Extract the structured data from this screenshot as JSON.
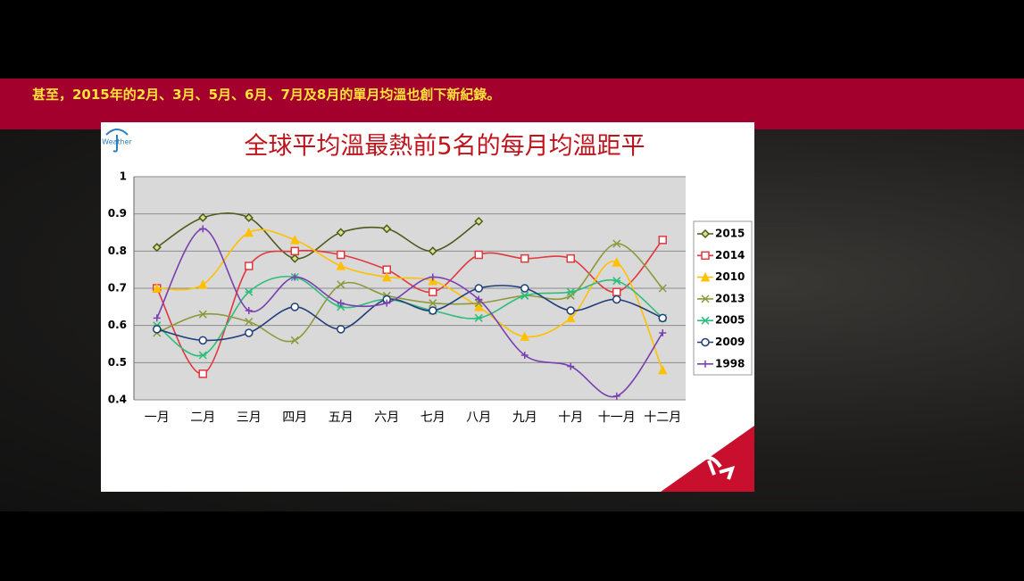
{
  "caption": "甚至，2015年的2月、3月、5月、6月、7月及8月的單月均溫也創下新紀錄。",
  "logo_text": "Weather",
  "chart_data": {
    "type": "line",
    "title": "全球平均溫最熱前5名的每月均溫距平",
    "categories": [
      "一月",
      "二月",
      "三月",
      "四月",
      "五月",
      "六月",
      "七月",
      "八月",
      "九月",
      "十月",
      "十一月",
      "十二月"
    ],
    "ylim": [
      0.4,
      1
    ],
    "yticks": [
      0.4,
      0.5,
      0.6,
      0.7,
      0.8,
      0.9,
      1
    ],
    "grid": true,
    "legend": "right",
    "series": [
      {
        "name": "2015",
        "color": "#4f5b1d",
        "marker": "diamond",
        "values": [
          0.81,
          0.89,
          0.89,
          0.78,
          0.85,
          0.86,
          0.8,
          0.88,
          null,
          null,
          null,
          null
        ]
      },
      {
        "name": "2014",
        "color": "#e0393e",
        "marker": "square",
        "values": [
          0.7,
          0.47,
          0.76,
          0.8,
          0.79,
          0.75,
          0.69,
          0.79,
          0.78,
          0.78,
          0.69,
          0.83
        ]
      },
      {
        "name": "2010",
        "color": "#ffc000",
        "marker": "triangle",
        "values": [
          0.7,
          0.71,
          0.85,
          0.83,
          0.76,
          0.73,
          0.72,
          0.65,
          0.57,
          0.62,
          0.77,
          0.48
        ]
      },
      {
        "name": "2013",
        "color": "#8c9a3c",
        "marker": "x",
        "values": [
          0.58,
          0.63,
          0.61,
          0.56,
          0.71,
          0.68,
          0.66,
          0.66,
          0.68,
          0.68,
          0.82,
          0.7
        ]
      },
      {
        "name": "2005",
        "color": "#2ebd7a",
        "marker": "star",
        "values": [
          0.6,
          0.52,
          0.69,
          0.73,
          0.65,
          0.67,
          0.64,
          0.62,
          0.68,
          0.69,
          0.72,
          0.62
        ]
      },
      {
        "name": "2009",
        "color": "#1f3f7a",
        "marker": "circle",
        "values": [
          0.59,
          0.56,
          0.58,
          0.65,
          0.59,
          0.67,
          0.64,
          0.7,
          0.7,
          0.64,
          0.67,
          0.62
        ]
      },
      {
        "name": "1998",
        "color": "#7a3fb0",
        "marker": "plus",
        "values": [
          0.62,
          0.86,
          0.64,
          0.73,
          0.66,
          0.66,
          0.73,
          0.67,
          0.52,
          0.49,
          0.41,
          0.58
        ]
      }
    ]
  }
}
